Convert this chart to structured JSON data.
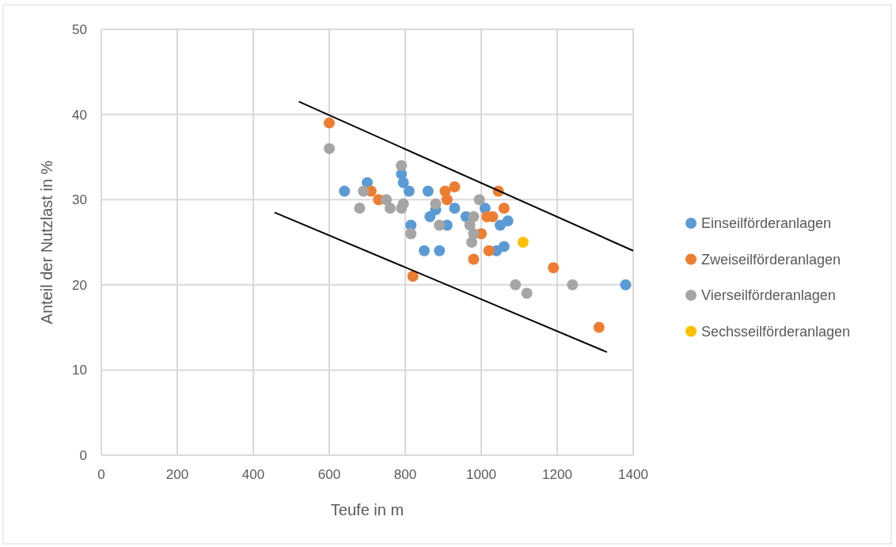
{
  "chart_data": {
    "type": "scatter",
    "xlabel": "Teufe in m",
    "ylabel": "Anteil der Nutzlast in %",
    "xlim": [
      0,
      1400
    ],
    "xticks": [
      0,
      200,
      400,
      600,
      800,
      1000,
      1200,
      1400
    ],
    "ylim": [
      0,
      50
    ],
    "yticks": [
      0,
      10,
      20,
      30,
      40,
      50
    ],
    "grid": true,
    "legend": "right",
    "marker": "circle",
    "series": [
      {
        "name": "Einseilförderanlagen",
        "color": "#5b9bd5",
        "x": [
          640,
          700,
          790,
          795,
          810,
          815,
          860,
          865,
          880,
          910,
          930,
          850,
          890,
          960,
          1010,
          1050,
          1070,
          1040,
          1060,
          1380
        ],
        "values": [
          31,
          32,
          33,
          32,
          31,
          27,
          31,
          28,
          28.8,
          27,
          29,
          24,
          24,
          28,
          29,
          27,
          27.5,
          24,
          24.5,
          20
        ]
      },
      {
        "name": "Zweiseilförderanlagen",
        "color": "#ed7d31",
        "x": [
          600,
          710,
          730,
          820,
          905,
          930,
          910,
          980,
          1000,
          1015,
          1030,
          1045,
          1060,
          1020,
          1190,
          1310
        ],
        "values": [
          39,
          31,
          30,
          21,
          31,
          31.5,
          30,
          23,
          26,
          28,
          28,
          31,
          29,
          24,
          22,
          15
        ]
      },
      {
        "name": "Vierseilförderanlagen",
        "color": "#a5a5a5",
        "x": [
          600,
          690,
          680,
          750,
          760,
          790,
          795,
          790,
          815,
          880,
          890,
          995,
          980,
          970,
          980,
          975,
          1090,
          1120,
          1240
        ],
        "values": [
          36,
          31,
          29,
          30,
          29,
          34,
          29.5,
          29,
          26,
          29.5,
          27,
          30,
          28,
          27,
          26,
          25,
          20,
          19,
          20
        ]
      },
      {
        "name": "Sechsseilförderanlagen",
        "color": "#ffc000",
        "x": [
          1110
        ],
        "values": [
          25
        ]
      },
      {
        "type": "line",
        "color": "#000000",
        "marker": "none",
        "x": [
          520,
          1400
        ],
        "values": [
          41.5,
          24
        ]
      },
      {
        "type": "line",
        "color": "#000000",
        "marker": "none",
        "x": [
          456,
          1331
        ],
        "values": [
          28.5,
          12.1
        ]
      }
    ]
  }
}
